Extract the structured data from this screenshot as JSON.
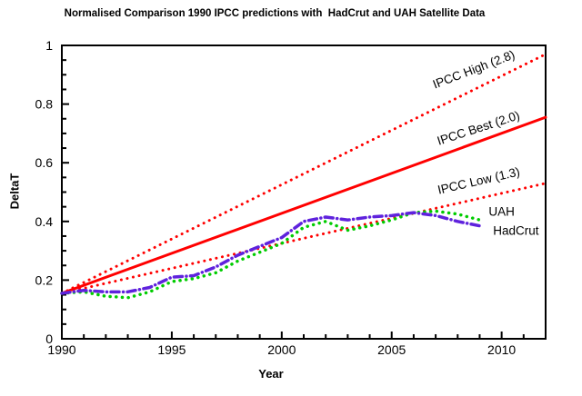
{
  "chart_data": {
    "type": "line",
    "title": "Normalised Comparison 1990 IPCC predictions with  HadCrut and UAH Satellite Data",
    "xlabel": "Year",
    "ylabel": "DeltaT",
    "xlim": [
      1990,
      2012
    ],
    "ylim": [
      0,
      1
    ],
    "x_major_ticks": [
      1990,
      1995,
      2000,
      2005,
      2010
    ],
    "x_tick_labels": [
      "1990",
      "1995",
      "2000",
      "2005",
      "2010"
    ],
    "x_minor_step": 1,
    "y_major_ticks": [
      0,
      0.2,
      0.4,
      0.6,
      0.8,
      1
    ],
    "y_tick_labels": [
      "0",
      "0.2",
      "0.4",
      "0.6",
      "0.8",
      "1"
    ],
    "y_minor_step": 0.05,
    "grid": false,
    "legend": "inline-labels",
    "colors": {
      "ipcc_lines": "#ff0000",
      "uah": "#00cc00",
      "hadcrut": "#5f22dd",
      "axis": "#000000"
    },
    "series": [
      {
        "name": "IPCC High (2.8)",
        "color": "#ff0000",
        "dash": "dotted",
        "width": 3,
        "x": [
          1990,
          2012
        ],
        "y": [
          0.155,
          0.97
        ],
        "label": {
          "text": "IPCC High (2.8)",
          "x": 2008.8,
          "y": 0.905,
          "angle": -21
        }
      },
      {
        "name": "IPCC Best (2.0)",
        "color": "#ff0000",
        "dash": "solid",
        "width": 3,
        "x": [
          1990,
          2012
        ],
        "y": [
          0.155,
          0.755
        ],
        "label": {
          "text": "IPCC Best (2.0)",
          "x": 2009.0,
          "y": 0.705,
          "angle": -18
        }
      },
      {
        "name": "IPCC Low (1.3)",
        "color": "#ff0000",
        "dash": "dotted",
        "width": 3,
        "x": [
          1990,
          2012
        ],
        "y": [
          0.155,
          0.53
        ],
        "label": {
          "text": "IPCC Low (1.3)",
          "x": 2009.0,
          "y": 0.525,
          "angle": -13
        }
      },
      {
        "name": "UAH",
        "color": "#00cc00",
        "dash": "dotted",
        "width": 3.5,
        "x": [
          1990,
          1991,
          1992,
          1993,
          1994,
          1995,
          1996,
          1997,
          1998,
          1999,
          2000,
          2001,
          2002,
          2003,
          2004,
          2005,
          2006,
          2007,
          2008,
          2009
        ],
        "y": [
          0.155,
          0.16,
          0.145,
          0.14,
          0.16,
          0.195,
          0.205,
          0.225,
          0.265,
          0.295,
          0.325,
          0.38,
          0.4,
          0.37,
          0.385,
          0.405,
          0.43,
          0.435,
          0.425,
          0.405
        ],
        "label": {
          "text": "UAH",
          "x": 2010.0,
          "y": 0.42,
          "angle": 0
        }
      },
      {
        "name": "HadCrut",
        "color": "#5f22dd",
        "dash": "dashdot",
        "width": 3.5,
        "x": [
          1990,
          1991,
          1992,
          1993,
          1994,
          1995,
          1996,
          1997,
          1998,
          1999,
          2000,
          2001,
          2002,
          2003,
          2004,
          2005,
          2006,
          2007,
          2008,
          2009
        ],
        "y": [
          0.155,
          0.165,
          0.16,
          0.16,
          0.175,
          0.21,
          0.215,
          0.245,
          0.285,
          0.315,
          0.345,
          0.4,
          0.415,
          0.405,
          0.415,
          0.42,
          0.43,
          0.42,
          0.4,
          0.385
        ],
        "label": {
          "text": "HadCrut",
          "x": 2010.65,
          "y": 0.355,
          "angle": 0
        }
      }
    ]
  }
}
